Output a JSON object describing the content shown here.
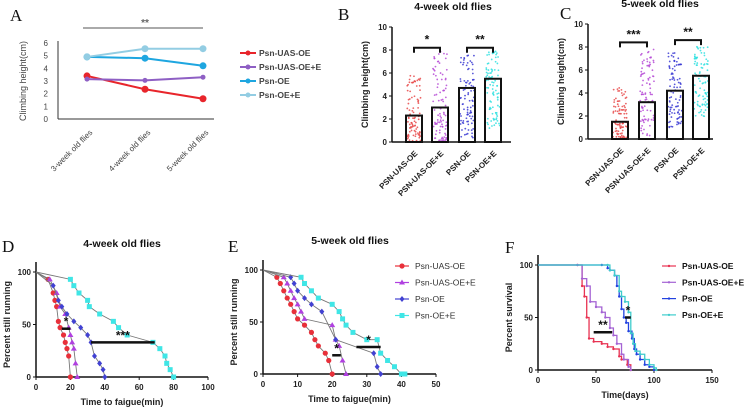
{
  "panel_letters": [
    "A",
    "B",
    "C",
    "D",
    "E",
    "F"
  ],
  "chart_data": [
    {
      "panel": "A",
      "type": "line",
      "categories": [
        "3-week old flies",
        "4-week old flies",
        "5-week old flies"
      ],
      "ylabel": "Climbing height(cm)",
      "ylim": [
        0,
        6
      ],
      "yticks": [
        0,
        1,
        2,
        3,
        4,
        5,
        6
      ],
      "grid": false,
      "legend": "right",
      "series": [
        {
          "name": "Psn-UAS-OE",
          "color": "#e8252b",
          "values": [
            3.4,
            2.35,
            1.6
          ]
        },
        {
          "name": "Psn-UAS-OE+E",
          "color": "#8e5fc4",
          "values": [
            3.15,
            3.05,
            3.3
          ]
        },
        {
          "name": "Psn-OE",
          "color": "#1ea6e0",
          "values": [
            4.9,
            4.8,
            4.2
          ]
        },
        {
          "name": "Psn-OE+E",
          "color": "#93cde3",
          "values": [
            4.9,
            5.55,
            5.55
          ]
        }
      ],
      "significance": [
        {
          "label": "**",
          "between": [
            0,
            2
          ]
        }
      ]
    },
    {
      "panel": "B",
      "type": "bar",
      "title": "4-week old flies",
      "categories": [
        "PSN-UAS-OE",
        "PSN-UAS-OE+E",
        "PSN-OE",
        "PSN-OE+E"
      ],
      "values": [
        2.3,
        3.0,
        4.7,
        5.5
      ],
      "point_range": [
        [
          0.1,
          5.9
        ],
        [
          0.1,
          7.9
        ],
        [
          0.3,
          7.6
        ],
        [
          1.1,
          8.0
        ]
      ],
      "colors": [
        "#e84a4a",
        "#b64bd6",
        "#3b3bd4",
        "#2fe0e0"
      ],
      "ylabel": "Climbing height(cm)",
      "ylim": [
        0,
        10
      ],
      "yticks": [
        0,
        2,
        4,
        6,
        8,
        10
      ],
      "grid": false,
      "significance": [
        {
          "label": "*",
          "between": [
            0,
            1
          ],
          "level": 8.2
        },
        {
          "label": "**",
          "between": [
            2,
            3
          ],
          "level": 8.2
        }
      ]
    },
    {
      "panel": "C",
      "type": "bar",
      "title": "5-week old flies",
      "categories": [
        "PSN-UAS-OE",
        "PSN-UAS-OE+E",
        "PSN-OE",
        "PSN-OE+E"
      ],
      "values": [
        1.5,
        3.2,
        4.2,
        5.5
      ],
      "point_range": [
        [
          0.1,
          4.6
        ],
        [
          0.3,
          7.8
        ],
        [
          1.0,
          7.7
        ],
        [
          1.8,
          8.1
        ]
      ],
      "colors": [
        "#e84a4a",
        "#b64bd6",
        "#3b3bd4",
        "#2fe0e0"
      ],
      "ylabel": "Climbing height(cm)",
      "ylim": [
        0,
        10
      ],
      "yticks": [
        0,
        2,
        4,
        6,
        8,
        10
      ],
      "grid": false,
      "significance": [
        {
          "label": "***",
          "between": [
            0,
            1
          ],
          "level": 8.4
        },
        {
          "label": "**",
          "between": [
            2,
            3
          ],
          "level": 8.6
        }
      ]
    },
    {
      "panel": "D",
      "type": "line",
      "title": "4-week old flies",
      "xlabel": "Time to faigue(min)",
      "ylabel": "Percent still running",
      "xlim": [
        0,
        100
      ],
      "xticks": [
        0,
        20,
        40,
        60,
        80,
        100
      ],
      "ylim": [
        0,
        100
      ],
      "yticks": [
        0,
        50,
        100
      ],
      "grid": false,
      "series": [
        {
          "color": "#e8303a",
          "marker": "circle",
          "x": [
            0,
            7,
            10,
            11,
            12,
            13,
            14,
            16,
            17,
            18,
            19,
            20
          ],
          "y": [
            100,
            93,
            80,
            73,
            67,
            53,
            47,
            40,
            33,
            27,
            20,
            0
          ]
        },
        {
          "color": "#b040e0",
          "marker": "triangle",
          "x": [
            0,
            8,
            12,
            14,
            17,
            19,
            20,
            21,
            22,
            23,
            24
          ],
          "y": [
            100,
            93,
            80,
            67,
            60,
            47,
            40,
            33,
            27,
            13,
            0
          ]
        },
        {
          "color": "#4141d2",
          "marker": "diamond",
          "x": [
            0,
            10,
            13,
            15,
            18,
            22,
            26,
            30,
            32,
            34,
            37,
            39,
            40
          ],
          "y": [
            100,
            87,
            73,
            67,
            60,
            53,
            47,
            40,
            33,
            20,
            13,
            7,
            0
          ]
        },
        {
          "color": "#3fe6e6",
          "marker": "square",
          "x": [
            0,
            20,
            22,
            25,
            30,
            31,
            37,
            45,
            48,
            53,
            68,
            72,
            75,
            76,
            78,
            80
          ],
          "y": [
            100,
            93,
            87,
            80,
            73,
            67,
            60,
            53,
            47,
            40,
            33,
            27,
            20,
            13,
            7,
            0
          ]
        }
      ],
      "significance": [
        {
          "label": "*",
          "x": [
            15,
            20
          ],
          "level": 46
        },
        {
          "label": "***",
          "x": [
            32,
            69
          ],
          "level": 33
        }
      ]
    },
    {
      "panel": "E",
      "type": "line",
      "title": "5-week old flies",
      "xlabel": "Time to faigue(min)",
      "ylabel": "Percent still running",
      "xlim": [
        0,
        50
      ],
      "xticks": [
        0,
        10,
        20,
        30,
        40,
        50
      ],
      "ylim": [
        0,
        100
      ],
      "yticks": [
        0,
        50,
        100
      ],
      "grid": false,
      "legend": "right",
      "series": [
        {
          "name": "Psn-UAS-OE",
          "color": "#e8303a",
          "marker": "circle",
          "x": [
            0,
            4,
            5,
            6,
            7,
            8,
            9,
            10,
            12,
            14,
            15,
            16,
            18,
            19,
            20
          ],
          "y": [
            100,
            93,
            87,
            80,
            73,
            67,
            60,
            53,
            47,
            40,
            33,
            27,
            20,
            13,
            0
          ]
        },
        {
          "name": "Psn-UAS-OE+E",
          "color": "#b040e0",
          "marker": "triangle",
          "x": [
            0,
            6,
            7,
            8,
            9,
            10,
            11,
            12,
            20,
            21,
            22,
            23,
            24
          ],
          "y": [
            100,
            93,
            87,
            80,
            73,
            67,
            60,
            53,
            47,
            33,
            27,
            13,
            0
          ]
        },
        {
          "name": "Psn-OE",
          "color": "#4141d2",
          "marker": "diamond",
          "x": [
            0,
            8,
            9,
            10,
            12,
            14,
            17,
            21,
            32,
            33,
            34
          ],
          "y": [
            100,
            93,
            87,
            80,
            73,
            67,
            60,
            33,
            20,
            7,
            0
          ]
        },
        {
          "name": "Psn-OE+E",
          "color": "#3fe6e6",
          "marker": "square",
          "x": [
            0,
            11,
            12,
            14,
            16,
            20,
            22,
            23,
            24,
            26,
            30,
            33,
            34,
            36,
            38,
            40,
            41
          ],
          "y": [
            100,
            93,
            87,
            80,
            73,
            67,
            60,
            53,
            47,
            40,
            33,
            33,
            20,
            13,
            7,
            0,
            0
          ]
        }
      ],
      "significance": [
        {
          "label": "*",
          "x": [
            20,
            22.5
          ],
          "level": 18
        },
        {
          "label": "*",
          "x": [
            27,
            34
          ],
          "level": 26
        }
      ]
    },
    {
      "panel": "F",
      "type": "line",
      "xlabel": "Time(days)",
      "ylabel": "Percent survival",
      "xlim": [
        0,
        150
      ],
      "xticks": [
        0,
        50,
        100,
        150
      ],
      "ylim": [
        0,
        100
      ],
      "yticks": [
        0,
        50,
        100
      ],
      "grid": false,
      "legend": "right",
      "series": [
        {
          "name": "Psn-UAS-OE",
          "color": "#e83252",
          "x": [
            0,
            34,
            38,
            40,
            42,
            44,
            48,
            55,
            60,
            65,
            70,
            72,
            77,
            80
          ],
          "y": [
            100,
            100,
            80,
            70,
            50,
            30,
            27,
            25,
            22,
            20,
            13,
            10,
            5,
            0
          ]
        },
        {
          "name": "Psn-UAS-OE+E",
          "color": "#a463d4",
          "x": [
            0,
            34,
            38,
            42,
            45,
            50,
            55,
            58,
            62,
            65,
            68,
            72,
            74,
            78,
            80
          ],
          "y": [
            100,
            100,
            87,
            80,
            65,
            60,
            55,
            50,
            40,
            33,
            25,
            15,
            10,
            3,
            0
          ]
        },
        {
          "name": "Psn-OE",
          "color": "#2242e0",
          "x": [
            0,
            55,
            60,
            62,
            66,
            68,
            70,
            72,
            74,
            76,
            78,
            81,
            83,
            85,
            88,
            92,
            96,
            100
          ],
          "y": [
            100,
            100,
            97,
            95,
            90,
            80,
            70,
            58,
            50,
            45,
            37,
            30,
            20,
            15,
            10,
            5,
            3,
            0
          ]
        },
        {
          "name": "Psn-OE+E",
          "color": "#3fcccc",
          "x": [
            0,
            60,
            62,
            66,
            70,
            72,
            75,
            78,
            80,
            82,
            84,
            88,
            92,
            96,
            100,
            102
          ],
          "y": [
            100,
            100,
            95,
            90,
            75,
            70,
            65,
            55,
            35,
            25,
            18,
            15,
            10,
            5,
            2,
            0
          ]
        }
      ],
      "significance": [
        {
          "label": "**",
          "x": [
            48,
            64
          ],
          "level": 36
        },
        {
          "label": "*",
          "x": [
            75,
            80
          ],
          "level": 50
        }
      ]
    }
  ]
}
